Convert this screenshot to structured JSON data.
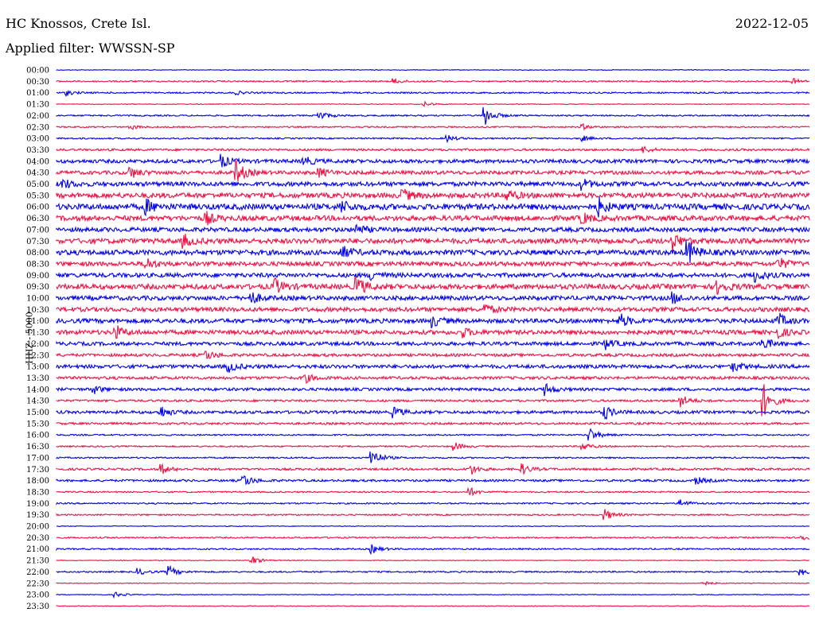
{
  "header": {
    "station": "HC Knossos, Crete Isl.",
    "date": "2022-12-05",
    "filter": "Applied filter: WWSSN-SP"
  },
  "chart_data": {
    "type": "line",
    "title": "HC Knossos, Crete Isl.",
    "ylabel": "HHZ - 5000",
    "row_labels": [
      "00:00",
      "00:30",
      "01:00",
      "01:30",
      "02:00",
      "02:30",
      "03:00",
      "03:30",
      "04:00",
      "04:30",
      "05:00",
      "05:30",
      "06:00",
      "06:30",
      "07:00",
      "07:30",
      "08:00",
      "08:30",
      "09:00",
      "09:30",
      "10:00",
      "10:30",
      "11:00",
      "11:30",
      "12:00",
      "12:30",
      "13:00",
      "13:30",
      "14:00",
      "14:30",
      "15:00",
      "15:30",
      "16:00",
      "16:30",
      "17:00",
      "17:30",
      "18:00",
      "18:30",
      "19:00",
      "19:30",
      "20:00",
      "20:30",
      "21:00",
      "21:30",
      "22:00",
      "22:30",
      "23:00",
      "23:30"
    ],
    "noise_level": [
      1,
      2,
      2,
      1,
      2,
      2,
      2,
      3,
      5,
      5,
      6,
      7,
      8,
      7,
      6,
      7,
      7,
      6,
      6,
      7,
      6,
      6,
      6,
      6,
      5,
      4,
      5,
      4,
      4,
      3,
      4,
      3,
      2,
      2,
      2,
      3,
      3,
      2,
      2,
      2,
      1,
      2,
      2,
      1,
      2,
      1,
      1,
      1
    ],
    "events": [
      {
        "row": "00:30",
        "t": 0.45,
        "amp": 3
      },
      {
        "row": "00:30",
        "t": 0.98,
        "amp": 3
      },
      {
        "row": "01:00",
        "t": 0.015,
        "amp": 3
      },
      {
        "row": "01:00",
        "t": 0.24,
        "amp": 2
      },
      {
        "row": "01:30",
        "t": 0.49,
        "amp": 3
      },
      {
        "row": "02:00",
        "t": 0.35,
        "amp": 6
      },
      {
        "row": "02:00",
        "t": 0.57,
        "amp": 12
      },
      {
        "row": "02:30",
        "t": 0.1,
        "amp": 3
      },
      {
        "row": "02:30",
        "t": 0.7,
        "amp": 3
      },
      {
        "row": "03:00",
        "t": 0.52,
        "amp": 4
      },
      {
        "row": "03:00",
        "t": 0.7,
        "amp": 3
      },
      {
        "row": "03:30",
        "t": 0.78,
        "amp": 4
      },
      {
        "row": "04:00",
        "t": 0.22,
        "amp": 8
      },
      {
        "row": "04:00",
        "t": 0.33,
        "amp": 6
      },
      {
        "row": "04:30",
        "t": 0.1,
        "amp": 7
      },
      {
        "row": "04:30",
        "t": 0.24,
        "amp": 14
      },
      {
        "row": "04:30",
        "t": 0.35,
        "amp": 6
      },
      {
        "row": "05:00",
        "t": 0.01,
        "amp": 6
      },
      {
        "row": "05:00",
        "t": 0.7,
        "amp": 6
      },
      {
        "row": "05:30",
        "t": 0.46,
        "amp": 8
      },
      {
        "row": "05:30",
        "t": 0.6,
        "amp": 6
      },
      {
        "row": "06:00",
        "t": 0.12,
        "amp": 8
      },
      {
        "row": "06:00",
        "t": 0.38,
        "amp": 7
      },
      {
        "row": "06:00",
        "t": 0.72,
        "amp": 10
      },
      {
        "row": "06:30",
        "t": 0.2,
        "amp": 7
      },
      {
        "row": "06:30",
        "t": 0.7,
        "amp": 6
      },
      {
        "row": "07:00",
        "t": 0.4,
        "amp": 6
      },
      {
        "row": "07:30",
        "t": 0.17,
        "amp": 7
      },
      {
        "row": "07:30",
        "t": 0.82,
        "amp": 10
      },
      {
        "row": "08:00",
        "t": 0.38,
        "amp": 8
      },
      {
        "row": "08:00",
        "t": 0.84,
        "amp": 14
      },
      {
        "row": "08:30",
        "t": 0.12,
        "amp": 7
      },
      {
        "row": "08:30",
        "t": 0.96,
        "amp": 8
      },
      {
        "row": "09:00",
        "t": 0.42,
        "amp": 6
      },
      {
        "row": "09:00",
        "t": 0.93,
        "amp": 7
      },
      {
        "row": "09:30",
        "t": 0.29,
        "amp": 10
      },
      {
        "row": "09:30",
        "t": 0.4,
        "amp": 12
      },
      {
        "row": "09:30",
        "t": 0.88,
        "amp": 8
      },
      {
        "row": "10:00",
        "t": 0.26,
        "amp": 7
      },
      {
        "row": "10:00",
        "t": 0.82,
        "amp": 6
      },
      {
        "row": "10:30",
        "t": 0.57,
        "amp": 6
      },
      {
        "row": "11:00",
        "t": 0.5,
        "amp": 7
      },
      {
        "row": "11:00",
        "t": 0.75,
        "amp": 8
      },
      {
        "row": "11:00",
        "t": 0.96,
        "amp": 8
      },
      {
        "row": "11:30",
        "t": 0.08,
        "amp": 7
      },
      {
        "row": "11:30",
        "t": 0.54,
        "amp": 6
      },
      {
        "row": "11:30",
        "t": 0.96,
        "amp": 6
      },
      {
        "row": "12:00",
        "t": 0.73,
        "amp": 6
      },
      {
        "row": "12:00",
        "t": 0.94,
        "amp": 7
      },
      {
        "row": "12:30",
        "t": 0.2,
        "amp": 6
      },
      {
        "row": "13:00",
        "t": 0.23,
        "amp": 6
      },
      {
        "row": "13:00",
        "t": 0.9,
        "amp": 6
      },
      {
        "row": "13:30",
        "t": 0.33,
        "amp": 6
      },
      {
        "row": "14:00",
        "t": 0.05,
        "amp": 5
      },
      {
        "row": "14:00",
        "t": 0.65,
        "amp": 7
      },
      {
        "row": "14:30",
        "t": 0.83,
        "amp": 8
      },
      {
        "row": "14:30",
        "t": 0.94,
        "amp": 20
      },
      {
        "row": "15:00",
        "t": 0.14,
        "amp": 7
      },
      {
        "row": "15:00",
        "t": 0.45,
        "amp": 6
      },
      {
        "row": "15:00",
        "t": 0.73,
        "amp": 8
      },
      {
        "row": "16:00",
        "t": 0.71,
        "amp": 8
      },
      {
        "row": "16:30",
        "t": 0.53,
        "amp": 5
      },
      {
        "row": "16:30",
        "t": 0.7,
        "amp": 5
      },
      {
        "row": "17:00",
        "t": 0.42,
        "amp": 12
      },
      {
        "row": "17:30",
        "t": 0.14,
        "amp": 6
      },
      {
        "row": "17:30",
        "t": 0.55,
        "amp": 7
      },
      {
        "row": "17:30",
        "t": 0.62,
        "amp": 6
      },
      {
        "row": "18:00",
        "t": 0.25,
        "amp": 8
      },
      {
        "row": "18:00",
        "t": 0.85,
        "amp": 5
      },
      {
        "row": "18:30",
        "t": 0.55,
        "amp": 5
      },
      {
        "row": "19:00",
        "t": 0.83,
        "amp": 5
      },
      {
        "row": "19:30",
        "t": 0.73,
        "amp": 7
      },
      {
        "row": "20:30",
        "t": 0.99,
        "amp": 4
      },
      {
        "row": "21:00",
        "t": 0.42,
        "amp": 5
      },
      {
        "row": "21:30",
        "t": 0.26,
        "amp": 6
      },
      {
        "row": "22:00",
        "t": 0.11,
        "amp": 4
      },
      {
        "row": "22:00",
        "t": 0.15,
        "amp": 7
      },
      {
        "row": "22:00",
        "t": 0.99,
        "amp": 4
      },
      {
        "row": "22:30",
        "t": 0.86,
        "amp": 3
      },
      {
        "row": "23:00",
        "t": 0.08,
        "amp": 3
      }
    ],
    "colors": {
      "blue": "#0000ee",
      "red": "#ee1144"
    },
    "grid": false,
    "legend": "none"
  }
}
